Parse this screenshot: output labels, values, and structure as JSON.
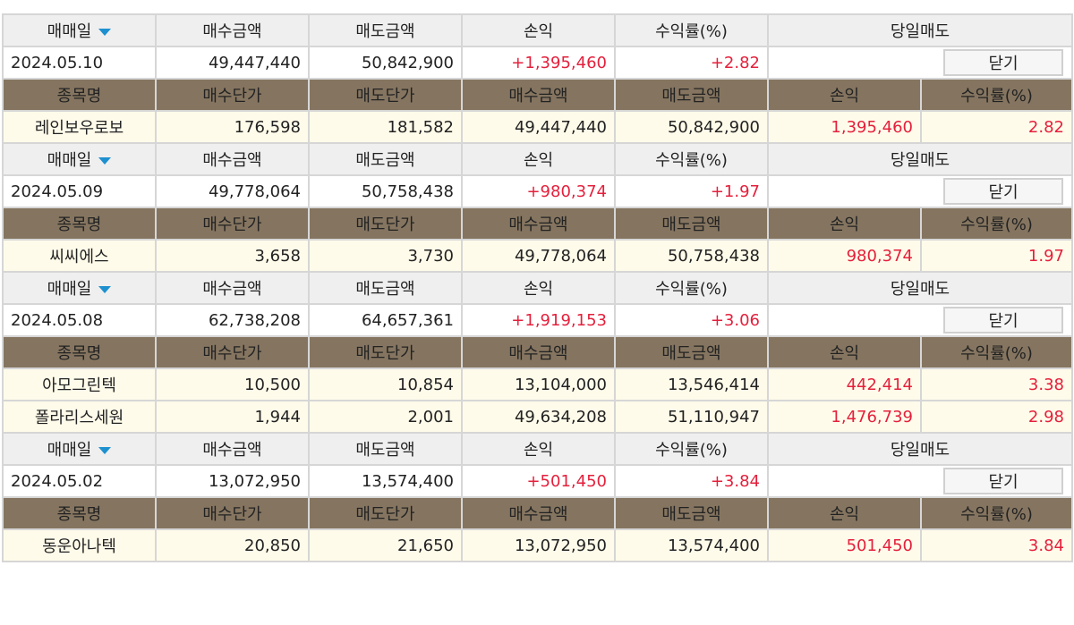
{
  "colors": {
    "sub_header_bg": "#857560",
    "stock_row_bg": "#fffbea",
    "header_bg": "#efefef",
    "profit": "#e4203c",
    "sort_arrow": "#1e90d0"
  },
  "header_labels": [
    "매매일",
    "매수금액",
    "매도금액",
    "손익",
    "수익률(%)",
    "당일매도"
  ],
  "sub_labels": [
    "종목명",
    "매수단가",
    "매도단가",
    "매수금액",
    "매도금액",
    "손익",
    "수익률(%)"
  ],
  "close_label": "닫기",
  "groups": [
    {
      "date": "2024.05.10",
      "buy_amount": "49,447,440",
      "sell_amount": "50,842,900",
      "profit": "+1,395,460",
      "rate": "+2.82",
      "stocks": [
        {
          "name": "레인보우로보",
          "buy_price": "176,598",
          "sell_price": "181,582",
          "buy_amount": "49,447,440",
          "sell_amount": "50,842,900",
          "profit": "1,395,460",
          "rate": "2.82"
        }
      ]
    },
    {
      "date": "2024.05.09",
      "buy_amount": "49,778,064",
      "sell_amount": "50,758,438",
      "profit": "+980,374",
      "rate": "+1.97",
      "stocks": [
        {
          "name": "씨씨에스",
          "buy_price": "3,658",
          "sell_price": "3,730",
          "buy_amount": "49,778,064",
          "sell_amount": "50,758,438",
          "profit": "980,374",
          "rate": "1.97"
        }
      ]
    },
    {
      "date": "2024.05.08",
      "buy_amount": "62,738,208",
      "sell_amount": "64,657,361",
      "profit": "+1,919,153",
      "rate": "+3.06",
      "stocks": [
        {
          "name": "아모그린텍",
          "buy_price": "10,500",
          "sell_price": "10,854",
          "buy_amount": "13,104,000",
          "sell_amount": "13,546,414",
          "profit": "442,414",
          "rate": "3.38"
        },
        {
          "name": "폴라리스세원",
          "buy_price": "1,944",
          "sell_price": "2,001",
          "buy_amount": "49,634,208",
          "sell_amount": "51,110,947",
          "profit": "1,476,739",
          "rate": "2.98"
        }
      ]
    },
    {
      "date": "2024.05.02",
      "buy_amount": "13,072,950",
      "sell_amount": "13,574,400",
      "profit": "+501,450",
      "rate": "+3.84",
      "stocks": [
        {
          "name": "동운아나텍",
          "buy_price": "20,850",
          "sell_price": "21,650",
          "buy_amount": "13,072,950",
          "sell_amount": "13,574,400",
          "profit": "501,450",
          "rate": "3.84"
        }
      ]
    }
  ]
}
